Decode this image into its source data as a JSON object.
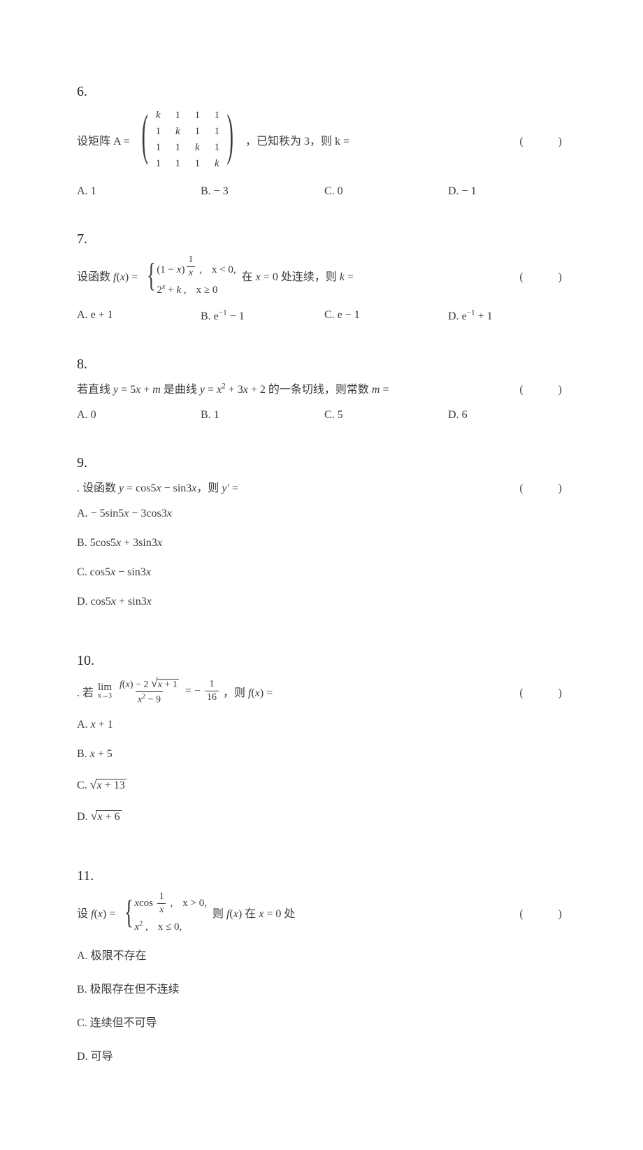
{
  "page": {
    "background_color": "#ffffff",
    "text_color": "#3a3a3a",
    "font_family": "Times New Roman / SimSun serif",
    "qnum_fontsize": 20,
    "body_fontsize": 16
  },
  "blank_marker": "(　　)",
  "questions": [
    {
      "number": "6.",
      "prefix": "设矩阵 A =",
      "matrix": {
        "rows": 4,
        "cols": 4,
        "cells": [
          "k",
          "1",
          "1",
          "1",
          "1",
          "k",
          "1",
          "1",
          "1",
          "1",
          "k",
          "1",
          "1",
          "1",
          "1",
          "k"
        ],
        "bracket": "[ ]"
      },
      "suffix": "，已知秩为 3，则 k =",
      "options_layout": "four",
      "options": [
        {
          "label": "A.",
          "text": "1"
        },
        {
          "label": "B.",
          "text": "− 3"
        },
        {
          "label": "C.",
          "text": "0"
        },
        {
          "label": "D.",
          "text": "− 1"
        }
      ]
    },
    {
      "number": "7.",
      "prefix": "设函数 f(x) =",
      "piecewise": {
        "rows": [
          {
            "expr": "(1 − x)^(1/x) ,",
            "cond": "x < 0,"
          },
          {
            "expr": "2^x + k ,",
            "cond": "x ≥ 0"
          }
        ]
      },
      "suffix": "在 x = 0 处连续，则 k =",
      "options_layout": "four",
      "options": [
        {
          "label": "A.",
          "text": "e + 1"
        },
        {
          "label": "B.",
          "text": "e^(−1) − 1"
        },
        {
          "label": "C.",
          "text": "e − 1"
        },
        {
          "label": "D.",
          "text": "e^(−1) + 1"
        }
      ]
    },
    {
      "number": "8.",
      "plain_stem": "若直线 y = 5x + m 是曲线 y = x² + 3x + 2 的一条切线，则常数 m =",
      "options_layout": "four",
      "options": [
        {
          "label": "A.",
          "text": "0"
        },
        {
          "label": "B.",
          "text": "1"
        },
        {
          "label": "C.",
          "text": "5"
        },
        {
          "label": "D.",
          "text": "6"
        }
      ]
    },
    {
      "number": "9.",
      "plain_stem": ". 设函数 y = cos5x − sin3x，则 y′ =",
      "options_layout": "two",
      "options": [
        {
          "label": "A.",
          "text": "− 5sin5x − 3cos3x"
        },
        {
          "label": "B.",
          "text": "5cos5x + 3sin3x"
        },
        {
          "label": "C.",
          "text": "cos5x − sin3x"
        },
        {
          "label": "D.",
          "text": "cos5x + sin3x"
        }
      ]
    },
    {
      "number": "10.",
      "limit_stem": {
        "prefix": ". 若",
        "lim_var": "x→3",
        "lim_top": "lim",
        "frac_num_parts": {
          "a": "f(x) − 2",
          "sqrt": "x + 1"
        },
        "frac_den": "x² − 9",
        "mid": " = −",
        "rhs_num": "1",
        "rhs_den": "16",
        "suffix": "，则 f(x) ="
      },
      "options_layout": "two",
      "options": [
        {
          "label": "A.",
          "text": "x + 1"
        },
        {
          "label": "B.",
          "text": "x + 5"
        },
        {
          "label": "C.",
          "sqrt": "x + 13"
        },
        {
          "label": "D.",
          "sqrt": "x + 6"
        }
      ]
    },
    {
      "number": "11.",
      "prefix": "设 f(x) =",
      "piecewise": {
        "rows": [
          {
            "expr_complex": {
              "a": "x cos",
              "frac_num": "1",
              "frac_den": "x",
              "b": " ,"
            },
            "cond": "x > 0,"
          },
          {
            "expr": "x² ,",
            "cond": "x ≤ 0,"
          }
        ]
      },
      "suffix": "则 f(x) 在 x = 0 处",
      "options_layout": "two",
      "options": [
        {
          "label": "A.",
          "text": "极限不存在"
        },
        {
          "label": "B.",
          "text": "极限存在但不连续"
        },
        {
          "label": "C.",
          "text": "连续但不可导"
        },
        {
          "label": "D.",
          "text": "可导"
        }
      ]
    }
  ]
}
